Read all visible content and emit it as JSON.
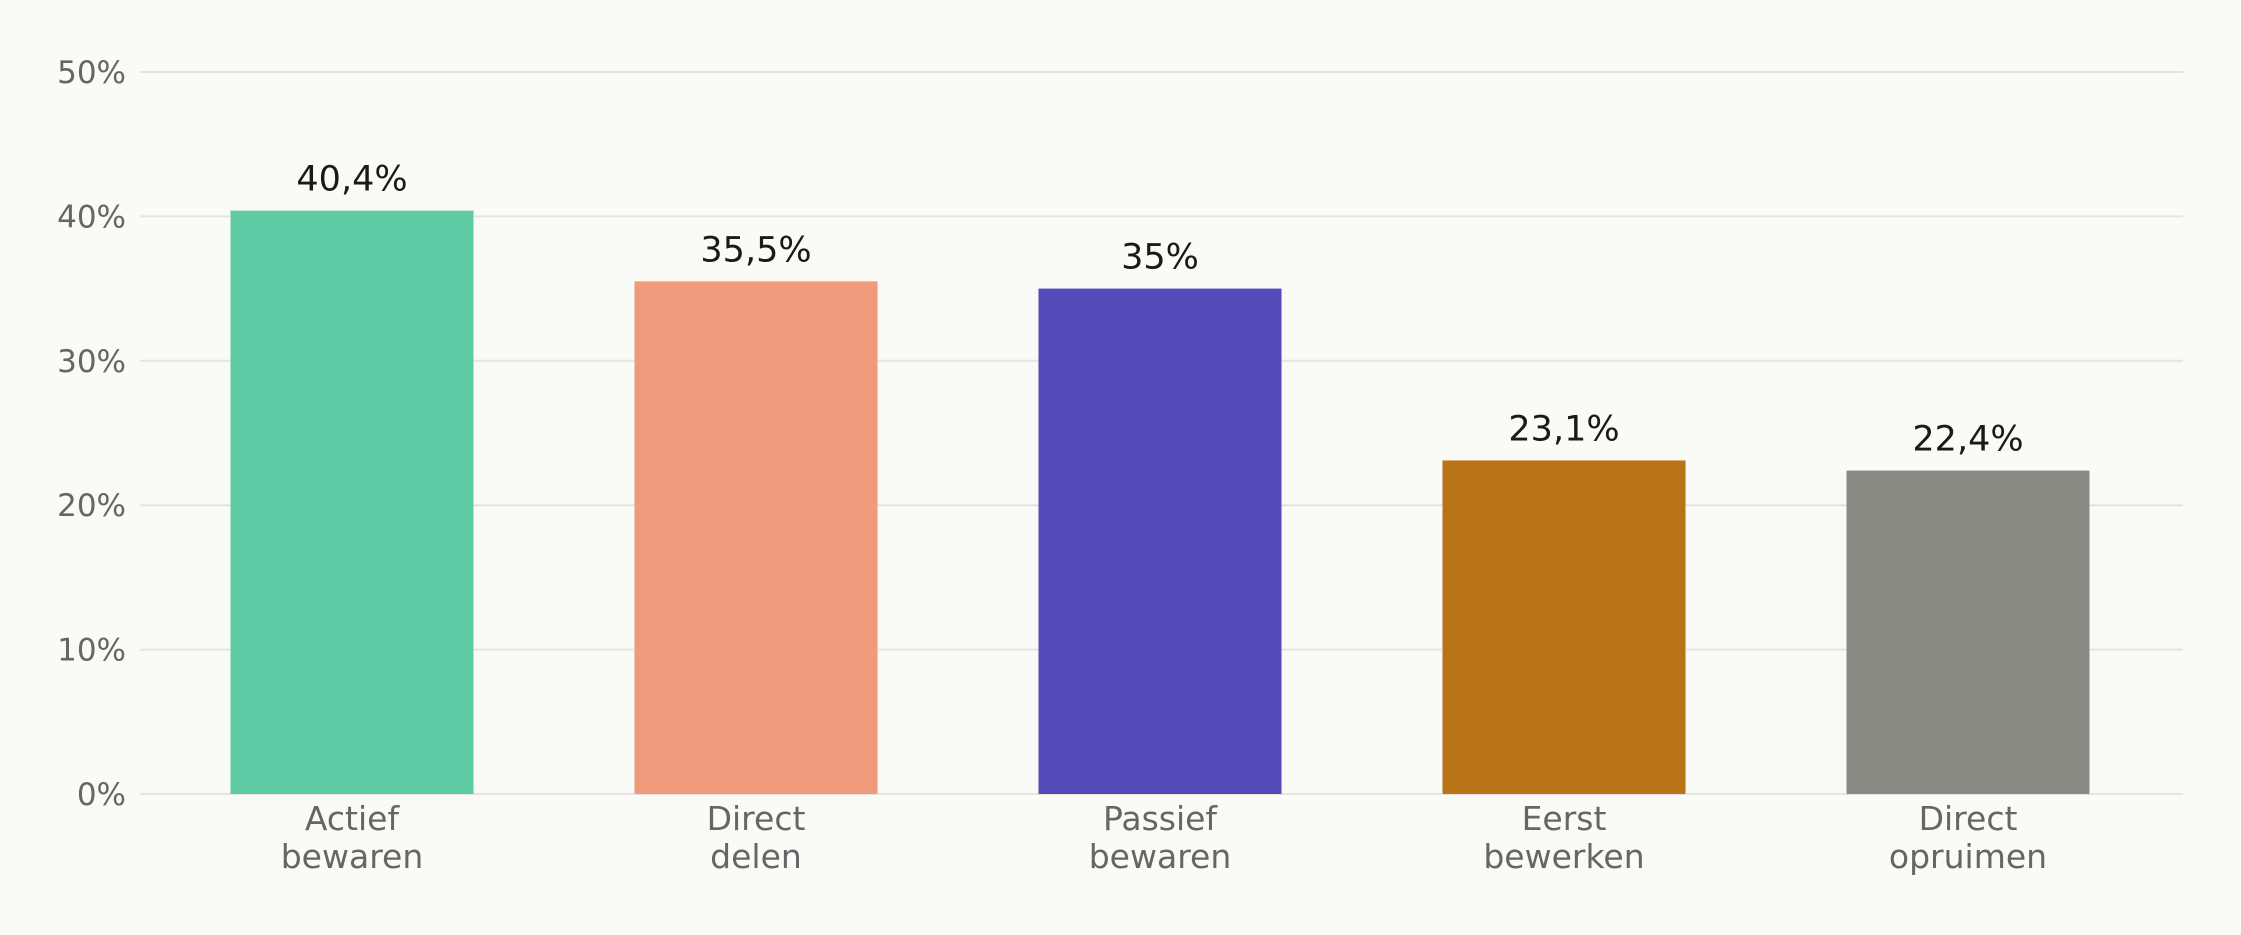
{
  "chart_data": {
    "type": "bar",
    "categories": [
      [
        "Actief",
        "bewaren"
      ],
      [
        "Direct",
        "delen"
      ],
      [
        "Passief",
        "bewaren"
      ],
      [
        "Eerst",
        "bewerken"
      ],
      [
        "Direct",
        "opruimen"
      ]
    ],
    "values": [
      40.4,
      35.5,
      35,
      23.1,
      22.4
    ],
    "value_labels": [
      "40,4%",
      "35,5%",
      "35%",
      "23,1%",
      "22,4%"
    ],
    "colors": [
      "#5ecba5",
      "#f09a7c",
      "#534bb7",
      "#ba7418",
      "#8a8a82"
    ],
    "ylim": [
      0,
      50
    ],
    "yticks": [
      0,
      10,
      20,
      30,
      40,
      50
    ],
    "ytick_labels": [
      "0%",
      "10%",
      "20%",
      "30%",
      "40%",
      "50%"
    ],
    "grid": true,
    "title": "",
    "xlabel": "",
    "ylabel": ""
  }
}
